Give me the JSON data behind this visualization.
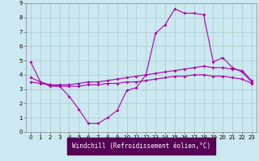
{
  "title": "",
  "xlabel": "Windchill (Refroidissement éolien,°C)",
  "bg_color": "#cce8f0",
  "grid_color": "#aacccc",
  "line_color": "#aa00aa",
  "xlim": [
    -0.5,
    23.5
  ],
  "ylim": [
    0,
    9
  ],
  "xticks": [
    0,
    1,
    2,
    3,
    4,
    5,
    6,
    7,
    8,
    9,
    10,
    11,
    12,
    13,
    14,
    15,
    16,
    17,
    18,
    19,
    20,
    21,
    22,
    23
  ],
  "yticks": [
    0,
    1,
    2,
    3,
    4,
    5,
    6,
    7,
    8,
    9
  ],
  "curve1_x": [
    0,
    1,
    2,
    3,
    4,
    5,
    6,
    7,
    8,
    9,
    10,
    11,
    12,
    13,
    14,
    15,
    16,
    17,
    18,
    19,
    20,
    21,
    22,
    23
  ],
  "curve1_y": [
    4.9,
    3.5,
    3.2,
    3.2,
    2.5,
    1.6,
    0.6,
    0.6,
    1.0,
    1.5,
    2.9,
    3.1,
    4.0,
    6.9,
    7.5,
    8.6,
    8.3,
    8.3,
    8.2,
    4.9,
    5.2,
    4.5,
    4.2,
    3.5
  ],
  "curve2_x": [
    0,
    1,
    2,
    3,
    4,
    5,
    6,
    7,
    8,
    9,
    10,
    11,
    12,
    13,
    14,
    15,
    16,
    17,
    18,
    19,
    20,
    21,
    22,
    23
  ],
  "curve2_y": [
    3.8,
    3.5,
    3.3,
    3.3,
    3.3,
    3.4,
    3.5,
    3.5,
    3.6,
    3.7,
    3.8,
    3.9,
    4.0,
    4.1,
    4.2,
    4.3,
    4.4,
    4.5,
    4.6,
    4.5,
    4.5,
    4.4,
    4.3,
    3.6
  ],
  "curve3_x": [
    0,
    1,
    2,
    3,
    4,
    5,
    6,
    7,
    8,
    9,
    10,
    11,
    12,
    13,
    14,
    15,
    16,
    17,
    18,
    19,
    20,
    21,
    22,
    23
  ],
  "curve3_y": [
    3.5,
    3.4,
    3.3,
    3.2,
    3.2,
    3.2,
    3.3,
    3.3,
    3.4,
    3.4,
    3.5,
    3.5,
    3.6,
    3.7,
    3.8,
    3.9,
    3.9,
    4.0,
    4.0,
    3.9,
    3.9,
    3.8,
    3.7,
    3.4
  ],
  "xlabel_bg": "#550055",
  "xlabel_fg": "#ffffff",
  "xlabel_fontsize": 5.5,
  "tick_fontsize": 5,
  "marker_size": 2.0,
  "line_width": 0.8
}
